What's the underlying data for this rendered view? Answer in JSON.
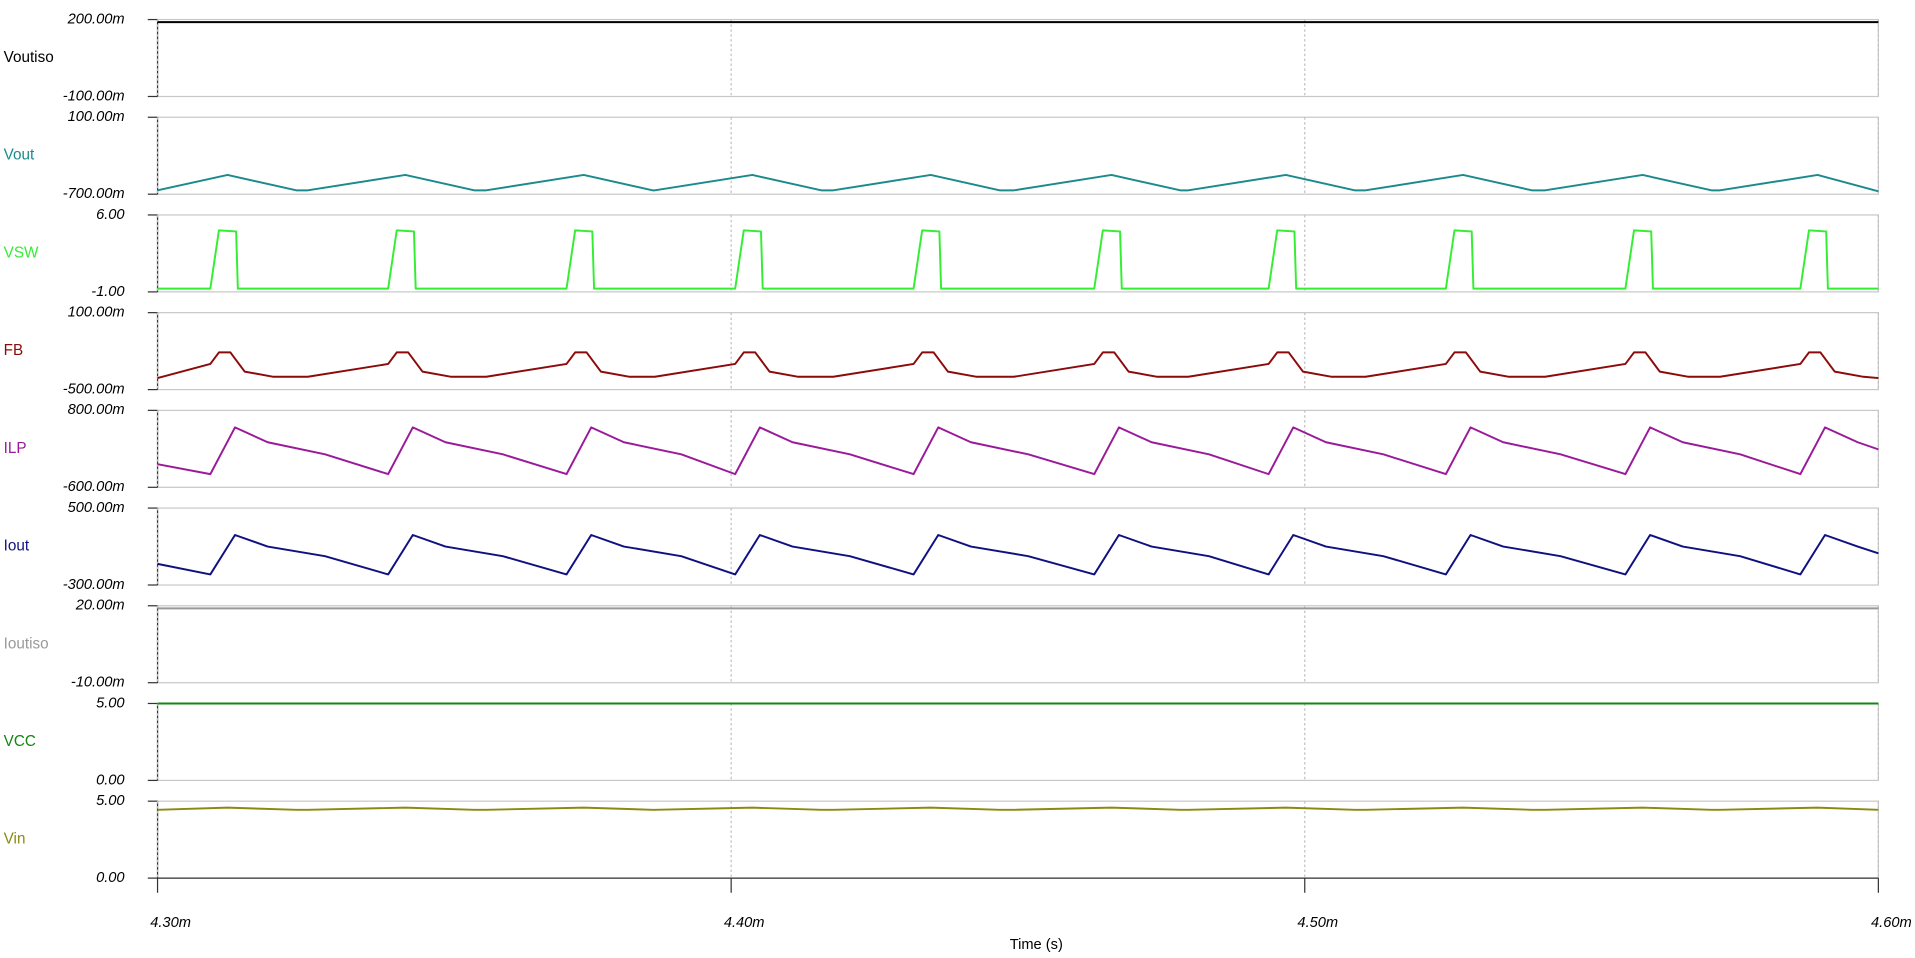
{
  "chart_data": [
    {
      "type": "line",
      "xlim": [
        0.0043,
        0.0046
      ],
      "ylim": [
        -0.1,
        0.2
      ],
      "yticks": [
        {
          "value": -0.1,
          "label": "-100.00m"
        },
        {
          "value": 0.2,
          "label": "200.00m"
        }
      ],
      "x": [
        0.0043,
        0.0046
      ],
      "series": [
        {
          "name": "Voutiso",
          "color": "#000000",
          "values": [
            0.19,
            0.19
          ]
        }
      ]
    },
    {
      "type": "line",
      "xlim": [
        0.0043,
        0.0046
      ],
      "ylim": [
        -0.7,
        0.1
      ],
      "yticks": [
        {
          "value": -0.7,
          "label": "-700.00m"
        },
        {
          "value": 0.1,
          "label": "100.00m"
        }
      ],
      "x": [
        0.0043,
        0.0043122,
        0.0043242,
        0.0043262,
        0.0043432,
        0.0043552,
        0.0043573,
        0.0043743,
        0.0043863,
        0.0043867,
        0.0044037,
        0.0044157,
        0.0044178,
        0.0044348,
        0.0044468,
        0.0044493,
        0.0044663,
        0.0044783,
        0.0044797,
        0.0044967,
        0.0045087,
        0.0045106,
        0.0045276,
        0.0045396,
        0.0045419,
        0.0045589,
        0.0045709,
        0.0045724,
        0.0045894,
        0.0046
      ],
      "series": [
        {
          "name": "Vout",
          "color": "#1b8a8c",
          "values": [
            -0.66,
            -0.5,
            -0.66,
            -0.66,
            -0.5,
            -0.66,
            -0.66,
            -0.5,
            -0.66,
            -0.66,
            -0.5,
            -0.66,
            -0.66,
            -0.5,
            -0.66,
            -0.66,
            -0.5,
            -0.66,
            -0.66,
            -0.5,
            -0.66,
            -0.66,
            -0.5,
            -0.66,
            -0.66,
            -0.5,
            -0.66,
            -0.66,
            -0.5,
            -0.67
          ]
        }
      ]
    },
    {
      "type": "line",
      "xlim": [
        0.0043,
        0.0046
      ],
      "ylim": [
        -1,
        6
      ],
      "yticks": [
        {
          "value": -1,
          "label": "-1.00"
        },
        {
          "value": 6,
          "label": "6.00"
        }
      ],
      "x": [
        0.0043,
        0.0043092,
        0.0043107,
        0.0043137,
        0.004314,
        0.0043402,
        0.0043417,
        0.0043447,
        0.004345,
        0.0043713,
        0.0043728,
        0.0043758,
        0.0043761,
        0.0044007,
        0.0044022,
        0.0044052,
        0.0044055,
        0.0044318,
        0.0044333,
        0.0044363,
        0.0044366,
        0.0044633,
        0.0044648,
        0.0044678,
        0.0044681,
        0.0044937,
        0.0044952,
        0.0044982,
        0.0044985,
        0.0045246,
        0.0045261,
        0.0045291,
        0.0045294,
        0.0045559,
        0.0045574,
        0.0045604,
        0.0045607,
        0.0045864,
        0.0045879,
        0.0045909,
        0.0045912,
        0.0046
      ],
      "series": [
        {
          "name": "VSW",
          "color": "#33ee33",
          "values": [
            -0.7,
            -0.7,
            4.6,
            4.5,
            -0.7,
            -0.7,
            4.6,
            4.5,
            -0.7,
            -0.7,
            4.6,
            4.5,
            -0.7,
            -0.7,
            4.6,
            4.5,
            -0.7,
            -0.7,
            4.6,
            4.5,
            -0.7,
            -0.7,
            4.6,
            4.5,
            -0.7,
            -0.7,
            4.6,
            4.5,
            -0.7,
            -0.7,
            4.6,
            4.5,
            -0.7,
            -0.7,
            4.6,
            4.5,
            -0.7,
            -0.7,
            4.6,
            4.5,
            -0.7,
            -0.7
          ]
        }
      ]
    },
    {
      "type": "line",
      "xlim": [
        0.0043,
        0.0046
      ],
      "ylim": [
        -0.5,
        0.1
      ],
      "yticks": [
        {
          "value": -0.5,
          "label": "-500.00m"
        },
        {
          "value": 0.1,
          "label": "100.00m"
        }
      ],
      "x": [
        0.0043,
        0.0043092,
        0.0043107,
        0.0043127,
        0.0043152,
        0.0043202,
        0.0043262,
        0.0043402,
        0.0043417,
        0.0043437,
        0.0043462,
        0.0043512,
        0.0043573,
        0.0043713,
        0.0043728,
        0.0043748,
        0.0043773,
        0.0043823,
        0.0043867,
        0.0044007,
        0.0044022,
        0.0044042,
        0.0044067,
        0.0044117,
        0.0044178,
        0.0044318,
        0.0044333,
        0.0044353,
        0.0044378,
        0.0044428,
        0.0044493,
        0.0044633,
        0.0044648,
        0.0044668,
        0.0044693,
        0.0044743,
        0.0044797,
        0.0044937,
        0.0044952,
        0.0044972,
        0.0044997,
        0.0045047,
        0.0045106,
        0.0045246,
        0.0045261,
        0.0045281,
        0.0045306,
        0.0045356,
        0.0045419,
        0.0045559,
        0.0045574,
        0.0045594,
        0.0045619,
        0.0045669,
        0.0045724,
        0.0045864,
        0.0045879,
        0.0045899,
        0.0045924,
        0.0045974,
        0.0046
      ],
      "series": [
        {
          "name": "FB",
          "color": "#8b0a0a",
          "values": [
            -0.41,
            -0.3,
            -0.21,
            -0.21,
            -0.36,
            -0.4,
            -0.4,
            -0.3,
            -0.21,
            -0.21,
            -0.36,
            -0.4,
            -0.4,
            -0.3,
            -0.21,
            -0.21,
            -0.36,
            -0.4,
            -0.4,
            -0.3,
            -0.21,
            -0.21,
            -0.36,
            -0.4,
            -0.4,
            -0.3,
            -0.21,
            -0.21,
            -0.36,
            -0.4,
            -0.4,
            -0.3,
            -0.21,
            -0.21,
            -0.36,
            -0.4,
            -0.4,
            -0.3,
            -0.21,
            -0.21,
            -0.36,
            -0.4,
            -0.4,
            -0.3,
            -0.21,
            -0.21,
            -0.36,
            -0.4,
            -0.4,
            -0.3,
            -0.21,
            -0.21,
            -0.36,
            -0.4,
            -0.4,
            -0.3,
            -0.21,
            -0.21,
            -0.36,
            -0.4,
            -0.41
          ]
        }
      ]
    },
    {
      "type": "line",
      "xlim": [
        0.0043,
        0.0046
      ],
      "ylim": [
        -0.6,
        0.8
      ],
      "yticks": [
        {
          "value": -0.6,
          "label": "-600.00m"
        },
        {
          "value": 0.8,
          "label": "800.00m"
        }
      ],
      "x": [
        0.0043,
        0.0043092,
        0.0043135,
        0.0043192,
        0.0043292,
        0.0043402,
        0.0043445,
        0.0043502,
        0.0043602,
        0.0043713,
        0.0043756,
        0.0043813,
        0.0043913,
        0.0044007,
        0.004405,
        0.0044107,
        0.0044207,
        0.0044318,
        0.0044361,
        0.0044418,
        0.0044518,
        0.0044633,
        0.0044676,
        0.0044733,
        0.0044833,
        0.0044937,
        0.004498,
        0.0045037,
        0.0045137,
        0.0045246,
        0.0045289,
        0.0045346,
        0.0045446,
        0.0045559,
        0.0045602,
        0.0045659,
        0.0045759,
        0.0045864,
        0.0045907,
        0.0045964,
        0.0046
      ],
      "series": [
        {
          "name": "ILP",
          "color": "#9a1a9a",
          "values": [
            -0.18,
            -0.36,
            0.49,
            0.22,
            0.0,
            -0.36,
            0.49,
            0.22,
            0.0,
            -0.36,
            0.49,
            0.22,
            0.0,
            -0.36,
            0.49,
            0.22,
            0.0,
            -0.36,
            0.49,
            0.22,
            0.0,
            -0.36,
            0.49,
            0.22,
            0.0,
            -0.36,
            0.49,
            0.22,
            0.0,
            -0.36,
            0.49,
            0.22,
            0.0,
            -0.36,
            0.49,
            0.22,
            0.0,
            -0.36,
            0.49,
            0.22,
            0.09
          ]
        }
      ]
    },
    {
      "type": "line",
      "xlim": [
        0.0043,
        0.0046
      ],
      "ylim": [
        -0.3,
        0.5
      ],
      "yticks": [
        {
          "value": -0.3,
          "label": "-300.00m"
        },
        {
          "value": 0.5,
          "label": "500.00m"
        }
      ],
      "x": [
        0.0043,
        0.0043092,
        0.0043135,
        0.0043192,
        0.0043292,
        0.0043402,
        0.0043445,
        0.0043502,
        0.0043602,
        0.0043713,
        0.0043756,
        0.0043813,
        0.0043913,
        0.0044007,
        0.004405,
        0.0044107,
        0.0044207,
        0.0044318,
        0.0044361,
        0.0044418,
        0.0044518,
        0.0044633,
        0.0044676,
        0.0044733,
        0.0044833,
        0.0044937,
        0.004498,
        0.0045037,
        0.0045137,
        0.0045246,
        0.0045289,
        0.0045346,
        0.0045446,
        0.0045559,
        0.0045602,
        0.0045659,
        0.0045759,
        0.0045864,
        0.0045907,
        0.0045964,
        0.0046
      ],
      "series": [
        {
          "name": "Iout",
          "color": "#101080",
          "values": [
            -0.08,
            -0.19,
            0.22,
            0.1,
            0.0,
            -0.19,
            0.22,
            0.1,
            0.0,
            -0.19,
            0.22,
            0.1,
            0.0,
            -0.19,
            0.22,
            0.1,
            0.0,
            -0.19,
            0.22,
            0.1,
            0.0,
            -0.19,
            0.22,
            0.1,
            0.0,
            -0.19,
            0.22,
            0.1,
            0.0,
            -0.19,
            0.22,
            0.1,
            0.0,
            -0.19,
            0.22,
            0.1,
            0.0,
            -0.19,
            0.22,
            0.1,
            0.03
          ]
        }
      ]
    },
    {
      "type": "line",
      "xlim": [
        0.0043,
        0.0046
      ],
      "ylim": [
        -0.01,
        0.02
      ],
      "yticks": [
        {
          "value": -0.01,
          "label": "-10.00m"
        },
        {
          "value": 0.02,
          "label": "20.00m"
        }
      ],
      "x": [
        0.0043,
        0.0046
      ],
      "series": [
        {
          "name": "Ioutiso",
          "color": "#999999",
          "values": [
            0.019,
            0.019
          ]
        }
      ]
    },
    {
      "type": "line",
      "xlim": [
        0.0043,
        0.0046
      ],
      "ylim": [
        0,
        5
      ],
      "yticks": [
        {
          "value": 0,
          "label": "0.00"
        },
        {
          "value": 5,
          "label": "5.00"
        }
      ],
      "x": [
        0.0043,
        0.0046
      ],
      "series": [
        {
          "name": "VCC",
          "color": "#118811",
          "values": [
            5,
            5
          ]
        }
      ]
    },
    {
      "type": "line",
      "xlim": [
        0.0043,
        0.0046
      ],
      "ylim": [
        0,
        5
      ],
      "yticks": [
        {
          "value": 0,
          "label": "0.00"
        },
        {
          "value": 5,
          "label": "5.00"
        }
      ],
      "xticks": [
        {
          "value": 0.0043,
          "label": "4.30m"
        },
        {
          "value": 0.0044,
          "label": "4.40m"
        },
        {
          "value": 0.0045,
          "label": "4.50m"
        },
        {
          "value": 0.0046,
          "label": "4.60m"
        }
      ],
      "xlabel": "Time (s)",
      "x": [
        0.0043,
        0.0043122,
        0.0043242,
        0.0043262,
        0.0043432,
        0.0043552,
        0.0043573,
        0.0043743,
        0.0043863,
        0.0043867,
        0.0044037,
        0.0044157,
        0.0044178,
        0.0044348,
        0.0044468,
        0.0044493,
        0.0044663,
        0.0044783,
        0.0044797,
        0.0044967,
        0.0045087,
        0.0045106,
        0.0045276,
        0.0045396,
        0.0045419,
        0.0045589,
        0.0045709,
        0.0045724,
        0.0045894,
        0.0046
      ],
      "series": [
        {
          "name": "Vin",
          "color": "#8a8a10",
          "values": [
            4.44,
            4.58,
            4.44,
            4.44,
            4.58,
            4.44,
            4.44,
            4.58,
            4.44,
            4.44,
            4.58,
            4.44,
            4.44,
            4.58,
            4.44,
            4.44,
            4.58,
            4.44,
            4.44,
            4.58,
            4.44,
            4.44,
            4.58,
            4.44,
            4.44,
            4.58,
            4.44,
            4.44,
            4.58,
            4.44
          ]
        }
      ]
    }
  ]
}
